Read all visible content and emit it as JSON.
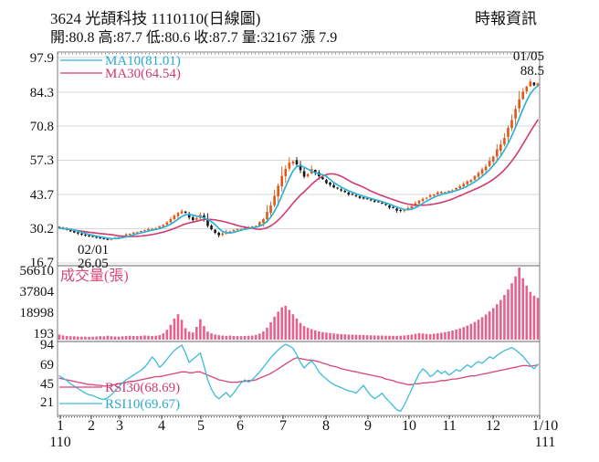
{
  "header": {
    "title": "3624 光頡科技 1110110(日線圖)",
    "source": "時報資訊",
    "quote_line": "開:80.8 高:87.7 低:80.6 收:87.7 量:32167 漲 7.9"
  },
  "legends": {
    "ma10": "MA10(81.01)",
    "ma30": "MA30(64.54)",
    "volume": "成交量(張)",
    "rsi30": "RSI30(68.69)",
    "rsi10": "RSI10(69.67)"
  },
  "annotations": {
    "low_date": "02/01",
    "low_price": "26.05",
    "high_date": "01/05",
    "high_price": "88.5"
  },
  "axes": {
    "price": [
      "97.9",
      "84.3",
      "70.8",
      "57.3",
      "43.7",
      "30.2",
      "16.7"
    ],
    "volume": [
      "56610",
      "37804",
      "18998",
      "193"
    ],
    "rsi": [
      "94",
      "69",
      "45",
      "21"
    ],
    "months": [
      "1",
      "2",
      "3",
      "4",
      "5",
      "6",
      "7",
      "8",
      "9",
      "10",
      "11",
      "12",
      "1/10"
    ],
    "year_left": "110",
    "year_right": "111"
  },
  "colors": {
    "up": "#e05718",
    "down": "#161616",
    "ma10": "#2fb2d6",
    "ma30": "#d03a70",
    "volume": "#e2638f",
    "rsi10": "#3cbcdc",
    "rsi30": "#d6447a",
    "grid": "#d9d9d9",
    "border": "#606060"
  },
  "chart_data": {
    "type": "candlestick",
    "title": "3624 光頡科技 1110110(日線圖)",
    "legend_position": "top-left",
    "grid": "horizontal",
    "last_quote": {
      "open": 80.8,
      "high": 87.7,
      "low": 80.6,
      "close": 87.7,
      "volume": 32167,
      "change": 7.9
    },
    "ma_last": {
      "MA10": 81.01,
      "MA30": 64.54
    },
    "marked_low": {
      "date": "02/01",
      "price": 26.05
    },
    "marked_high": {
      "date": "01/05",
      "price": 88.5
    },
    "x_axis": {
      "months": [
        "1",
        "2",
        "3",
        "4",
        "5",
        "6",
        "7",
        "8",
        "9",
        "10",
        "11",
        "12",
        "1/10"
      ],
      "year_start": "110",
      "year_end": "111"
    },
    "price": {
      "ylim": [
        16.7,
        97.9
      ],
      "ticks": [
        97.9,
        84.3,
        70.8,
        57.3,
        43.7,
        30.2,
        16.7
      ],
      "closes": [
        30.5,
        30.2,
        29.8,
        29.3,
        28.8,
        28.3,
        27.9,
        27.6,
        27.3,
        27.0,
        26.8,
        26.5,
        26.2,
        26.1,
        26.3,
        26.6,
        27.0,
        27.4,
        27.8,
        28.2,
        28.6,
        29.0,
        29.3,
        29.6,
        30.0,
        30.3,
        30.6,
        31.0,
        31.8,
        32.8,
        34.0,
        35.2,
        36.3,
        37.0,
        36.2,
        34.8,
        33.8,
        34.5,
        35.5,
        34.0,
        31.5,
        29.8,
        28.6,
        27.8,
        28.2,
        28.8,
        29.3,
        29.8,
        30.1,
        30.3,
        30.5,
        30.7,
        31.0,
        31.5,
        32.5,
        34.0,
        36.5,
        39.5,
        43.0,
        47.0,
        51.0,
        54.0,
        56.0,
        57.3,
        55.5,
        53.0,
        51.0,
        52.0,
        53.5,
        52.5,
        50.5,
        49.5,
        48.5,
        47.5,
        46.5,
        45.8,
        45.2,
        44.6,
        44.0,
        43.5,
        43.0,
        42.6,
        42.2,
        41.8,
        41.4,
        41.0,
        40.5,
        40.0,
        39.4,
        38.8,
        38.2,
        37.6,
        37.2,
        37.6,
        38.3,
        39.2,
        40.2,
        41.2,
        42.2,
        42.8,
        43.3,
        43.8,
        44.2,
        44.5,
        44.8,
        45.2,
        45.7,
        46.3,
        47.0,
        47.8,
        48.7,
        49.7,
        50.8,
        52.0,
        53.4,
        55.0,
        56.8,
        58.8,
        61.0,
        63.5,
        66.5,
        70.0,
        73.8,
        77.8,
        81.5,
        84.5,
        86.5,
        88.0,
        86.8,
        87.7
      ]
    },
    "volume": {
      "name": "成交量(張)",
      "ylim": [
        193,
        56610
      ],
      "ticks": [
        56610,
        37804,
        18998,
        193
      ],
      "values": [
        2600,
        1900,
        1500,
        1300,
        1200,
        1000,
        900,
        1000,
        850,
        900,
        1100,
        1400,
        1200,
        1700,
        1300,
        1100,
        1000,
        1200,
        1500,
        1700,
        1500,
        1400,
        1600,
        1900,
        1700,
        1500,
        1700,
        2100,
        3600,
        6500,
        10500,
        15500,
        19000,
        14500,
        7800,
        5000,
        4300,
        8800,
        15000,
        9500,
        5000,
        3600,
        2600,
        2100,
        1800,
        1600,
        1800,
        1500,
        1400,
        1300,
        1500,
        1600,
        1800,
        2400,
        3400,
        5200,
        8200,
        12500,
        17000,
        21000,
        24500,
        25800,
        22500,
        19000,
        15500,
        12000,
        9500,
        8000,
        7000,
        6000,
        5200,
        4600,
        4200,
        3800,
        3500,
        3200,
        3000,
        2800,
        2600,
        2500,
        2400,
        2300,
        2200,
        2100,
        2000,
        1900,
        1850,
        1800,
        1750,
        1700,
        1650,
        1600,
        1700,
        1900,
        2200,
        2600,
        3200,
        3800,
        3500,
        3100,
        2900,
        3300,
        3700,
        4100,
        4600,
        5200,
        5900,
        6700,
        7600,
        8600,
        9800,
        11200,
        12800,
        14600,
        16600,
        18800,
        21300,
        24000,
        27000,
        30500,
        34500,
        39000,
        44000,
        49500,
        56610,
        48000,
        42000,
        37000,
        34000,
        32167
      ]
    },
    "rsi": {
      "ylim": [
        21,
        94
      ],
      "ticks": [
        94,
        69,
        45,
        21
      ],
      "series": [
        {
          "name": "RSI30",
          "last": 68.69,
          "values": [
            52,
            51,
            50,
            49,
            48,
            47,
            46,
            45,
            44,
            44,
            43,
            43,
            42,
            42,
            43,
            44,
            45,
            46,
            47,
            48,
            48,
            49,
            50,
            51,
            52,
            53,
            54,
            54,
            55,
            56,
            57,
            58,
            59,
            60,
            60,
            59,
            59,
            60,
            60,
            58,
            56,
            54,
            52,
            50,
            49,
            48,
            47,
            47,
            47,
            48,
            48,
            49,
            49,
            50,
            52,
            54,
            56,
            58,
            61,
            64,
            67,
            70,
            73,
            76,
            78,
            77,
            76,
            75,
            75,
            74,
            73,
            71,
            70,
            68,
            67,
            66,
            64,
            63,
            62,
            61,
            60,
            59,
            58,
            57,
            56,
            55,
            54,
            53,
            51,
            50,
            49,
            47,
            46,
            45,
            44,
            44,
            45,
            45,
            46,
            46,
            47,
            47,
            48,
            49,
            49,
            50,
            51,
            51,
            52,
            53,
            54,
            55,
            55,
            56,
            57,
            58,
            59,
            60,
            61,
            62,
            63,
            64,
            65,
            66,
            67,
            68,
            68,
            67,
            68,
            68.69
          ]
        },
        {
          "name": "RSI10",
          "last": 69.67,
          "values": [
            55,
            52,
            49,
            45,
            42,
            39,
            36,
            33,
            31,
            30,
            28,
            26,
            25,
            27,
            31,
            36,
            41,
            46,
            50,
            53,
            56,
            59,
            62,
            66,
            72,
            79,
            74,
            66,
            70,
            76,
            82,
            87,
            91,
            94,
            84,
            72,
            76,
            80,
            84,
            68,
            50,
            38,
            30,
            26,
            30,
            34,
            28,
            33,
            40,
            46,
            50,
            47,
            50,
            55,
            60,
            66,
            72,
            78,
            83,
            88,
            92,
            95,
            93,
            90,
            82,
            72,
            65,
            70,
            74,
            68,
            60,
            55,
            51,
            47,
            44,
            42,
            40,
            38,
            36,
            35,
            33,
            38,
            43,
            36,
            30,
            26,
            29,
            33,
            27,
            22,
            17,
            12,
            10,
            18,
            28,
            38,
            48,
            58,
            64,
            60,
            54,
            57,
            62,
            58,
            61,
            56,
            59,
            63,
            61,
            65,
            69,
            66,
            70,
            73,
            71,
            75,
            79,
            77,
            81,
            84,
            87,
            89,
            91,
            88,
            84,
            80,
            74,
            68,
            64,
            69.67
          ]
        }
      ]
    }
  }
}
